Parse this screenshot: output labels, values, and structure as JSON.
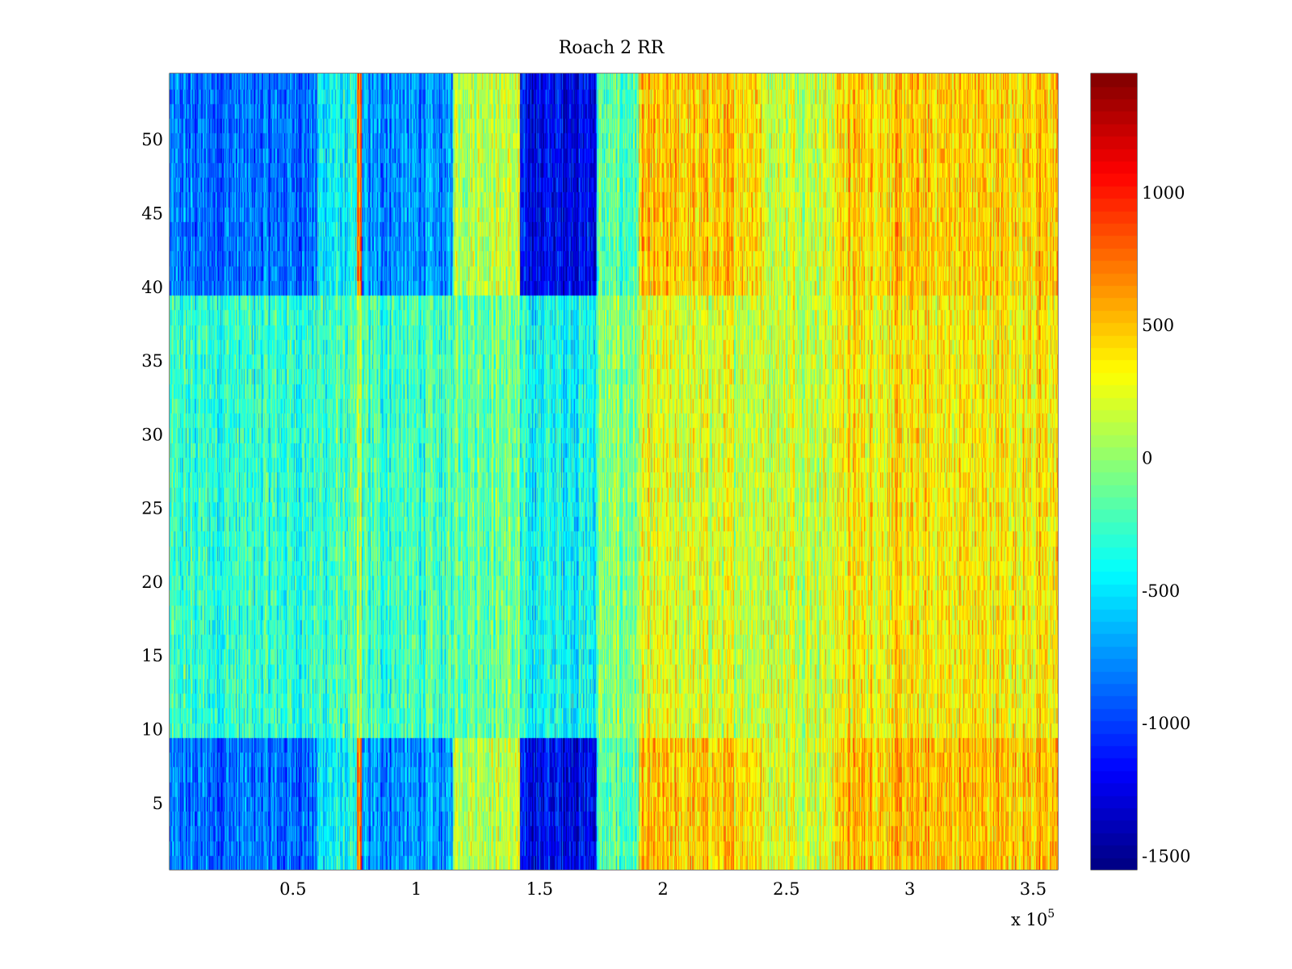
{
  "chart_data": {
    "type": "heatmap",
    "title": "Roach 2 RR",
    "xlabel": "",
    "ylabel": "",
    "x_exponent_label": "x 10",
    "x_exponent_power": "5",
    "xlim": [
      0,
      360000
    ],
    "ylim": [
      0.5,
      54.5
    ],
    "x_ticks": [
      50000,
      100000,
      150000,
      200000,
      250000,
      300000,
      350000
    ],
    "x_tick_labels": [
      "0.5",
      "1",
      "1.5",
      "2",
      "2.5",
      "3",
      "3.5"
    ],
    "y_ticks": [
      5,
      10,
      15,
      20,
      25,
      30,
      35,
      40,
      45,
      50
    ],
    "y_tick_labels": [
      "5",
      "10",
      "15",
      "20",
      "25",
      "30",
      "35",
      "40",
      "45",
      "50"
    ],
    "rows": 54,
    "colormap": "jet",
    "clim": [
      -1550,
      1450
    ],
    "colorbar": {
      "ticks": [
        -1500,
        -1000,
        -500,
        0,
        500,
        1000
      ],
      "tick_labels": [
        "-1500",
        "-1000",
        "-500",
        "0",
        "500",
        "1000"
      ]
    },
    "grid": false,
    "column_bands": [
      {
        "x_start": 0,
        "x_end": 60000,
        "top_rows_mean": -850,
        "middle_rows_mean": -300,
        "bottom_rows_mean": -850
      },
      {
        "x_start": 60000,
        "x_end": 76000,
        "top_rows_mean": -450,
        "middle_rows_mean": -250,
        "bottom_rows_mean": -450
      },
      {
        "x_start": 76000,
        "x_end": 78000,
        "top_rows_mean": 700,
        "middle_rows_mean": 100,
        "bottom_rows_mean": 700
      },
      {
        "x_start": 78000,
        "x_end": 115000,
        "top_rows_mean": -750,
        "middle_rows_mean": -250,
        "bottom_rows_mean": -750
      },
      {
        "x_start": 115000,
        "x_end": 142000,
        "top_rows_mean": 150,
        "middle_rows_mean": -100,
        "bottom_rows_mean": 150
      },
      {
        "x_start": 142000,
        "x_end": 173000,
        "top_rows_mean": -1200,
        "middle_rows_mean": -400,
        "bottom_rows_mean": -1200
      },
      {
        "x_start": 173000,
        "x_end": 190000,
        "top_rows_mean": -200,
        "middle_rows_mean": -50,
        "bottom_rows_mean": -200
      },
      {
        "x_start": 190000,
        "x_end": 240000,
        "top_rows_mean": 450,
        "middle_rows_mean": 200,
        "bottom_rows_mean": 450
      },
      {
        "x_start": 240000,
        "x_end": 270000,
        "top_rows_mean": 200,
        "middle_rows_mean": 200,
        "bottom_rows_mean": 250
      },
      {
        "x_start": 270000,
        "x_end": 360000,
        "top_rows_mean": 450,
        "middle_rows_mean": 350,
        "bottom_rows_mean": 500
      }
    ],
    "row_groups": {
      "top_rows": [
        40,
        54
      ],
      "middle_rows": [
        10,
        39
      ],
      "bottom_rows": [
        1,
        9
      ]
    }
  }
}
